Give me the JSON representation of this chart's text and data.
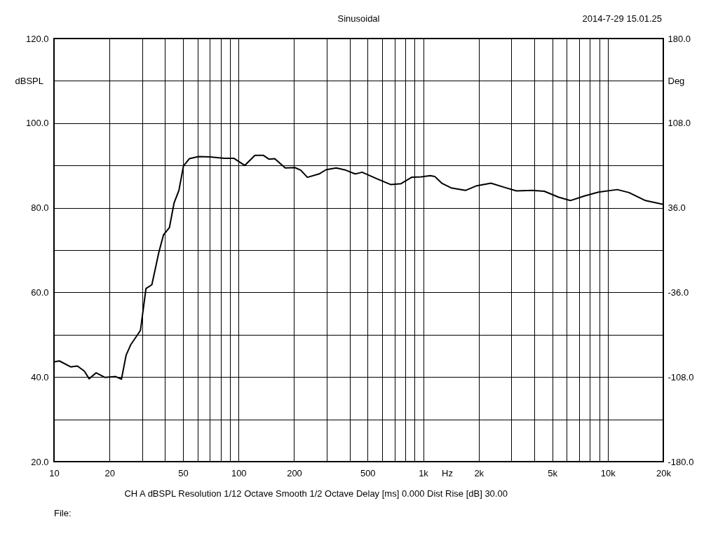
{
  "chart_data": {
    "type": "line",
    "title": "Sinusoidal",
    "xlabel": "Hz",
    "ylabel": "dBSPL",
    "y2label": "Deg",
    "annotations": [
      "2014-7-29 15.01.25",
      "CH A   dBSPL   Resolution 1/12 Octave   Smooth 1/2 Octave   Delay [ms] 0.000   Dist Rise [dB] 30.00",
      "File:"
    ],
    "log": "x",
    "grid": true,
    "line_style": "solid",
    "marker": "none",
    "xlim": [
      10,
      20000
    ],
    "ylim": [
      20,
      120
    ],
    "y2lim": [
      -180,
      180
    ],
    "xticks": [
      10,
      20,
      {
        "value": 30,
        "label": null
      },
      {
        "value": 40,
        "label": null
      },
      50,
      {
        "value": 60,
        "label": null
      },
      {
        "value": 70,
        "label": null
      },
      {
        "value": 80,
        "label": null
      },
      {
        "value": 90,
        "label": null
      },
      100,
      200,
      {
        "value": 300,
        "label": null
      },
      {
        "value": 400,
        "label": null
      },
      500,
      {
        "value": 600,
        "label": null
      },
      {
        "value": 700,
        "label": null
      },
      {
        "value": 800,
        "label": null
      },
      {
        "value": 900,
        "label": null
      },
      {
        "value": 1000,
        "label": "1k"
      },
      {
        "value": 2000,
        "label": "2k"
      },
      {
        "value": 3000,
        "label": null
      },
      {
        "value": 4000,
        "label": null
      },
      {
        "value": 5000,
        "label": "5k"
      },
      {
        "value": 6000,
        "label": null
      },
      {
        "value": 7000,
        "label": null
      },
      {
        "value": 8000,
        "label": null
      },
      {
        "value": 9000,
        "label": null
      },
      {
        "value": 10000,
        "label": "10k"
      },
      {
        "value": 20000,
        "label": "20k"
      }
    ],
    "yticks": [
      {
        "value": 20,
        "label": "20.0"
      },
      {
        "value": 30,
        "label": null
      },
      {
        "value": 40,
        "label": "40.0"
      },
      {
        "value": 50,
        "label": null
      },
      {
        "value": 60,
        "label": "60.0"
      },
      {
        "value": 70,
        "label": null
      },
      {
        "value": 80,
        "label": "80.0"
      },
      {
        "value": 90,
        "label": null
      },
      {
        "value": 100,
        "label": "100.0"
      },
      {
        "value": 110,
        "label": null
      },
      {
        "value": 120,
        "label": "120.0"
      }
    ],
    "y2ticks": [
      {
        "value": -180,
        "label": "-180.0"
      },
      {
        "value": -108,
        "label": "-108.0"
      },
      {
        "value": -36,
        "label": "-36.0"
      },
      {
        "value": 36,
        "label": "36.0"
      },
      {
        "value": 108,
        "label": "108.0"
      },
      {
        "value": 180,
        "label": "180.0"
      }
    ],
    "series": [
      {
        "color": "#000000",
        "x": [
          10,
          10.7,
          12.3,
          13.4,
          14.6,
          15.5,
          16.9,
          18.9,
          21.6,
          23.2,
          24.6,
          26.1,
          29.4,
          31.5,
          33.9,
          37,
          39.2,
          42.2,
          44.7,
          47.5,
          50.3,
          54.1,
          60.7,
          70.2,
          83.7,
          94.2,
          108,
          122.6,
          136,
          146,
          157,
          179,
          202,
          217,
          236,
          273,
          298,
          338,
          380,
          428,
          467,
          558,
          666,
          759,
          866,
          974,
          1093,
          1156,
          1262,
          1417,
          1695,
          1950,
          2330,
          2770,
          3200,
          3930,
          4530,
          5420,
          6270,
          7480,
          8910,
          11270,
          13030,
          16010,
          20000
        ],
        "values": [
          43.6,
          43.8,
          42.4,
          42.6,
          41.4,
          39.6,
          41.0,
          39.9,
          40.1,
          39.5,
          45.2,
          47.7,
          51.0,
          60.9,
          61.8,
          69.5,
          73.6,
          75.3,
          81.1,
          84.1,
          89.9,
          91.6,
          92.1,
          92.0,
          91.7,
          91.7,
          90.0,
          92.4,
          92.4,
          91.5,
          91.6,
          89.4,
          89.5,
          88.9,
          87.2,
          88.0,
          89.0,
          89.4,
          88.9,
          88.0,
          88.4,
          86.9,
          85.5,
          85.7,
          87.2,
          87.3,
          87.6,
          87.4,
          85.8,
          84.7,
          84.1,
          85.2,
          85.8,
          84.8,
          84.0,
          84.1,
          83.9,
          82.5,
          81.7,
          82.8,
          83.7,
          84.3,
          83.6,
          81.7,
          80.8
        ]
      }
    ]
  }
}
